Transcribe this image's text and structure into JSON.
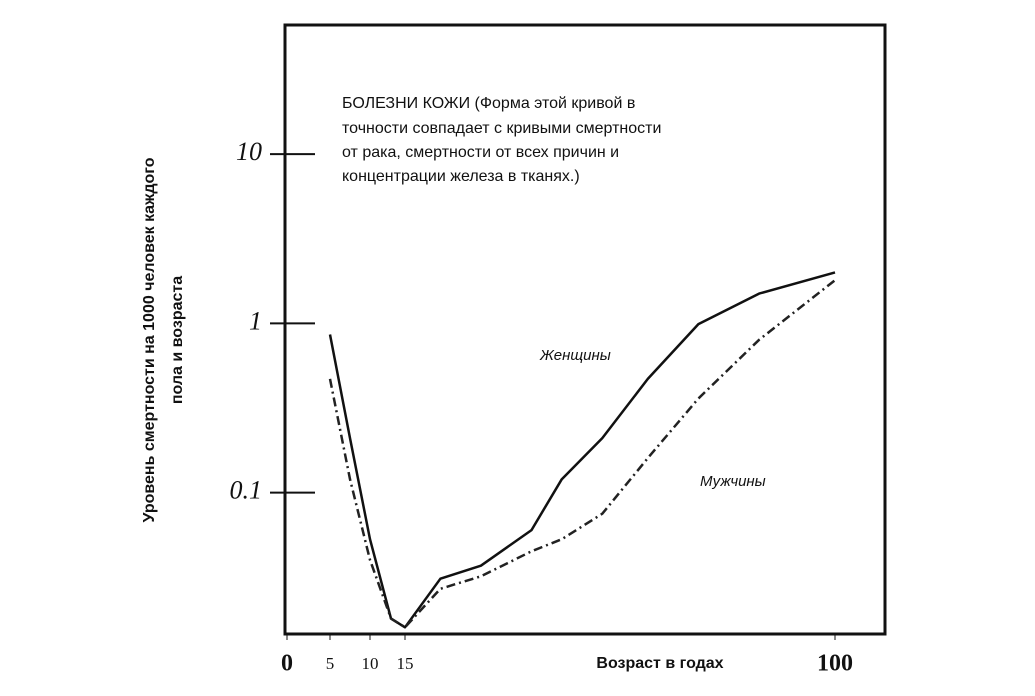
{
  "chart_data": {
    "type": "line",
    "annotation": [
      "БОЛЕЗНИ КОЖИ (Форма этой кривой в",
      "точности совпадает с кривыми смертности",
      "от рака, смертности от всех причин и",
      "концентрации железа в тканях.)"
    ],
    "x_label": "Возраст в годах",
    "y_label": [
      "Уровень смертности на 1000 человек каждого",
      "пола и возраста"
    ],
    "x": [
      5,
      7.5,
      10,
      13,
      15,
      22,
      30,
      40,
      46,
      54,
      63,
      73,
      85,
      100
    ],
    "series": [
      {
        "name": "Женщины",
        "color": "#111111",
        "dash": false,
        "values": [
          0.86,
          0.21,
          0.053,
          0.018,
          0.016,
          0.031,
          0.037,
          0.06,
          0.12,
          0.21,
          0.47,
          0.99,
          1.5,
          2.0
        ]
      },
      {
        "name": "Мужчины",
        "color": "#222222",
        "dash": true,
        "values": [
          0.47,
          0.12,
          0.04,
          0.018,
          0.016,
          0.027,
          0.032,
          0.045,
          0.053,
          0.075,
          0.16,
          0.36,
          0.8,
          1.8
        ]
      }
    ],
    "xlim": [
      0,
      100
    ],
    "xticks": [
      0,
      5,
      10,
      15,
      100
    ],
    "ylim": [
      0.015,
      58
    ],
    "yticks": [
      0.1,
      1,
      10
    ],
    "log_y": true
  }
}
